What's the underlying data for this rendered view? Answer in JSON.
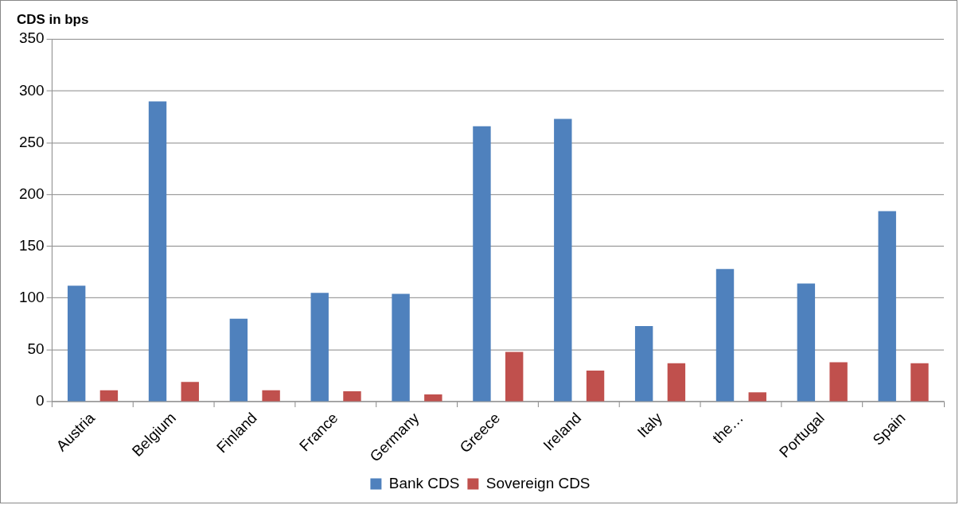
{
  "chart_data": {
    "type": "bar",
    "title": "CDS in bps",
    "categories": [
      "Austria",
      "Belgium",
      "Finland",
      "France",
      "Germany",
      "Greece",
      "Ireland",
      "Italy",
      "the…",
      "Portugal",
      "Spain"
    ],
    "series": [
      {
        "name": "Bank CDS",
        "color": "#4f81bd",
        "values": [
          112,
          290,
          80,
          105,
          104,
          266,
          273,
          73,
          128,
          114,
          184
        ]
      },
      {
        "name": "Sovereign CDS",
        "color": "#c0504d",
        "values": [
          11,
          19,
          11,
          10,
          7,
          48,
          30,
          37,
          9,
          38,
          37
        ]
      }
    ],
    "ylim": [
      0,
      350
    ],
    "yticks": [
      0,
      50,
      100,
      150,
      200,
      250,
      300,
      350
    ],
    "grid": "y",
    "legend": "bottom"
  }
}
